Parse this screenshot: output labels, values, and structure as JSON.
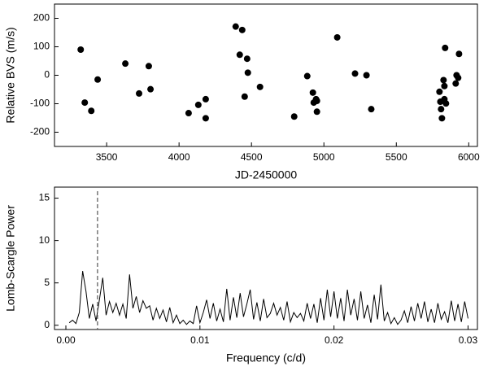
{
  "chart_data": [
    {
      "type": "scatter",
      "x_label": "JD-2450000",
      "y_label": "Relative BVS (m/s)",
      "color": "#000000",
      "x": [
        3321,
        3349,
        3394,
        3438,
        3629,
        3724,
        3791,
        3803,
        4066,
        4133,
        4184,
        4184,
        4391,
        4436,
        4419,
        4470,
        4475,
        4453,
        4559,
        4795,
        4885,
        4924,
        4930,
        4946,
        4952,
        4952,
        5092,
        5215,
        5294,
        5327,
        5798,
        5804,
        5809,
        5815,
        5826,
        5832,
        5837,
        5832,
        5843,
        5910,
        5933,
        5916,
        5927
      ],
      "values": [
        90,
        -96,
        -125,
        -15,
        41,
        -64,
        32,
        -49,
        -133,
        -104,
        -84,
        -151,
        171,
        159,
        72,
        58,
        9,
        -75,
        -41,
        -145,
        -3,
        -61,
        -96,
        -84,
        -90,
        -128,
        133,
        6,
        0,
        -119,
        -58,
        -93,
        -119,
        -151,
        -17,
        -38,
        96,
        -84,
        -99,
        -29,
        75,
        0,
        -9
      ],
      "xlim": [
        3140,
        6060
      ],
      "ylim": [
        -250,
        250
      ],
      "xticks": [
        3500,
        4000,
        4500,
        5000,
        5500,
        6000
      ],
      "yticks": [
        -200,
        -100,
        0,
        100,
        200
      ]
    },
    {
      "type": "line",
      "x_label": "Frequency (c/d)",
      "y_label": "Lomb-Scargle Power",
      "color": "#000000",
      "x": [
        0.00025,
        0.0005,
        0.00075,
        0.001,
        0.00125,
        0.0015,
        0.00175,
        0.002,
        0.00225,
        0.0025,
        0.00275,
        0.003,
        0.00325,
        0.0035,
        0.00375,
        0.004,
        0.00425,
        0.0045,
        0.00475,
        0.005,
        0.00525,
        0.0055,
        0.00575,
        0.006,
        0.00625,
        0.0065,
        0.00675,
        0.007,
        0.00725,
        0.0075,
        0.00775,
        0.008,
        0.00825,
        0.0085,
        0.00875,
        0.009,
        0.00925,
        0.0095,
        0.00975,
        0.01,
        0.01025,
        0.0105,
        0.01075,
        0.011,
        0.01125,
        0.0115,
        0.01175,
        0.012,
        0.01225,
        0.0125,
        0.01275,
        0.013,
        0.01325,
        0.0135,
        0.01375,
        0.014,
        0.01425,
        0.0145,
        0.01475,
        0.015,
        0.01525,
        0.0155,
        0.01575,
        0.016,
        0.01625,
        0.0165,
        0.01675,
        0.017,
        0.01725,
        0.0175,
        0.01775,
        0.018,
        0.01825,
        0.0185,
        0.01875,
        0.019,
        0.01925,
        0.0195,
        0.01975,
        0.02,
        0.02025,
        0.0205,
        0.02075,
        0.021,
        0.02125,
        0.0215,
        0.02175,
        0.022,
        0.02225,
        0.0225,
        0.02275,
        0.023,
        0.02325,
        0.0235,
        0.02375,
        0.024,
        0.02425,
        0.0245,
        0.02475,
        0.025,
        0.02525,
        0.0255,
        0.02575,
        0.026,
        0.02625,
        0.0265,
        0.02675,
        0.027,
        0.02725,
        0.0275,
        0.02775,
        0.028,
        0.02825,
        0.0285,
        0.02875,
        0.029,
        0.02925,
        0.0295,
        0.02975,
        0.03
      ],
      "values": [
        0.3,
        0.6,
        0.2,
        1.5,
        6.4,
        4.0,
        0.8,
        2.5,
        0.5,
        3.0,
        5.6,
        1.2,
        2.8,
        1.5,
        2.6,
        1.2,
        2.5,
        0.8,
        6.0,
        2.0,
        3.4,
        1.5,
        2.9,
        2.0,
        2.3,
        0.6,
        2.0,
        0.8,
        1.8,
        0.4,
        2.1,
        0.3,
        1.2,
        0.2,
        0.6,
        0.1,
        0.5,
        0.2,
        2.3,
        0.3,
        1.5,
        3.0,
        0.8,
        2.6,
        0.5,
        1.9,
        0.4,
        4.3,
        0.6,
        3.3,
        0.9,
        3.8,
        1.0,
        2.5,
        4.2,
        0.7,
        2.7,
        0.5,
        3.1,
        0.9,
        1.4,
        2.6,
        1.2,
        2.1,
        0.6,
        2.8,
        0.4,
        1.5,
        0.9,
        1.4,
        0.5,
        2.6,
        0.8,
        2.5,
        0.3,
        3.2,
        0.6,
        4.2,
        1.0,
        4.0,
        0.8,
        3.2,
        0.5,
        4.2,
        1.2,
        3.1,
        0.6,
        4.0,
        0.8,
        2.4,
        0.3,
        3.6,
        0.7,
        4.8,
        0.5,
        1.5,
        0.2,
        0.9,
        0.1,
        0.6,
        1.7,
        0.3,
        2.2,
        0.5,
        2.6,
        0.8,
        2.8,
        0.4,
        1.9,
        0.3,
        2.6,
        0.7,
        1.6,
        0.3,
        2.9,
        0.5,
        2.5,
        0.4,
        2.8,
        0.8
      ],
      "vline": 0.00236,
      "xlim": [
        -0.00085,
        0.0307
      ],
      "ylim": [
        -0.5,
        16.3
      ],
      "xticks": [
        {
          "value": 0,
          "label": "0.00"
        },
        {
          "value": 0.01,
          "label": "0.01"
        },
        {
          "value": 0.02,
          "label": "0.02"
        },
        {
          "value": 0.03,
          "label": "0.03"
        }
      ],
      "yticks": [
        0,
        5,
        10,
        15
      ]
    }
  ]
}
